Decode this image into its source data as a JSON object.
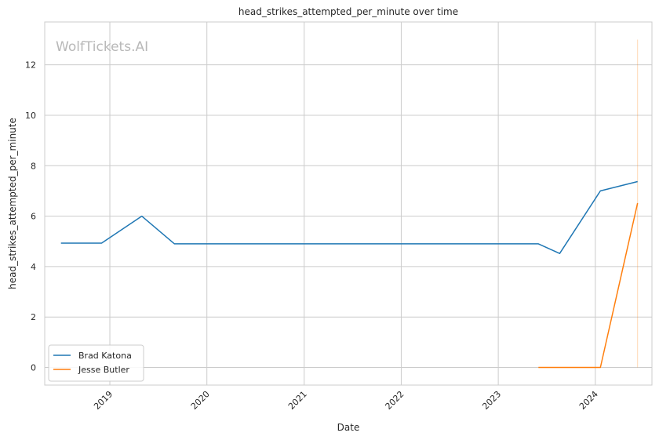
{
  "chart_data": {
    "type": "line",
    "title": "head_strikes_attempted_per_minute over time",
    "xlabel": "Date",
    "ylabel": "head_strikes_attempted_per_minute",
    "watermark": "WolfTickets.AI",
    "x_ticks": [
      "2019",
      "2020",
      "2021",
      "2022",
      "2023",
      "2024"
    ],
    "y_ticks": [
      "0",
      "2",
      "4",
      "6",
      "8",
      "10",
      "12"
    ],
    "xlim": [
      "2018-05-01",
      "2024-08-01"
    ],
    "ylim": [
      -0.7,
      13.7
    ],
    "grid": true,
    "legend_position": "lower-left",
    "series": [
      {
        "name": "Brad Katona",
        "color": "#1f77b4",
        "points": [
          {
            "x": "2018-07-01",
            "y": 4.93
          },
          {
            "x": "2018-12-01",
            "y": 4.93
          },
          {
            "x": "2019-05-01",
            "y": 6.0
          },
          {
            "x": "2019-09-01",
            "y": 4.9
          },
          {
            "x": "2023-06-01",
            "y": 4.9
          },
          {
            "x": "2023-08-20",
            "y": 4.52
          },
          {
            "x": "2024-01-20",
            "y": 7.0
          },
          {
            "x": "2024-06-08",
            "y": 7.37
          }
        ]
      },
      {
        "name": "Jesse Butler",
        "color": "#ff7f0e",
        "points": [
          {
            "x": "2023-06-01",
            "y": 0.0
          },
          {
            "x": "2024-01-20",
            "y": 0.0
          },
          {
            "x": "2024-06-08",
            "y": 6.52
          }
        ]
      }
    ],
    "vertical_marker": {
      "x": "2024-06-08",
      "y_range": [
        0,
        13.0
      ],
      "color": "#ff7f0e"
    }
  }
}
